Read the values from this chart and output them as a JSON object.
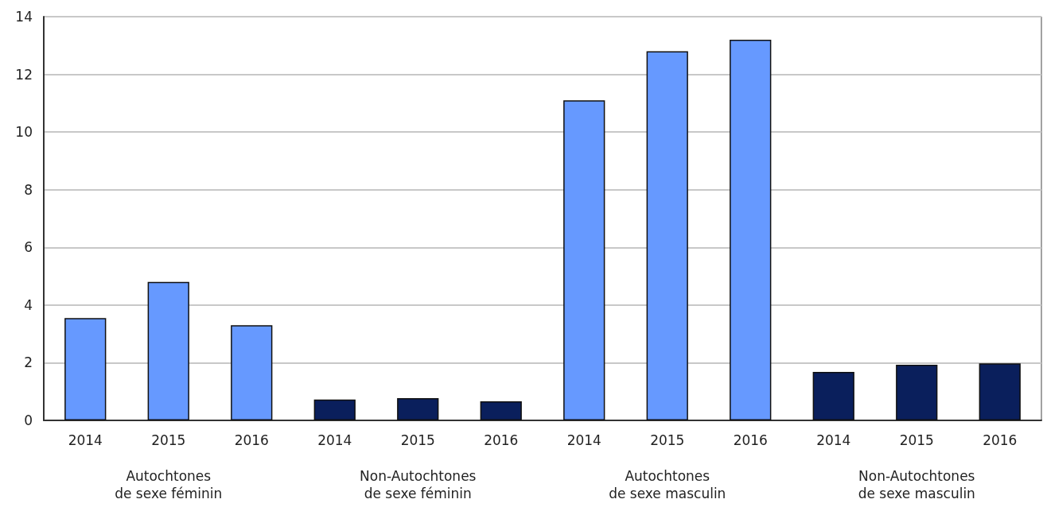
{
  "chart_data": {
    "type": "bar",
    "categories": [
      "2014",
      "2015",
      "2016",
      "2014",
      "2015",
      "2016",
      "2014",
      "2015",
      "2016",
      "2014",
      "2015",
      "2016"
    ],
    "values": [
      3.55,
      4.8,
      3.3,
      0.72,
      0.77,
      0.66,
      11.1,
      12.8,
      13.2,
      1.68,
      1.93,
      1.98
    ],
    "colors": [
      "#6699ff",
      "#6699ff",
      "#6699ff",
      "#0a1f5c",
      "#0a1f5c",
      "#0a1f5c",
      "#6699ff",
      "#6699ff",
      "#6699ff",
      "#0a1f5c",
      "#0a1f5c",
      "#0a1f5c"
    ],
    "ylim": [
      0,
      14
    ],
    "yticks": [
      0,
      2,
      4,
      6,
      8,
      10,
      12,
      14
    ],
    "grid": "y",
    "annotations": [
      "Autochtones\nde sexe féminin",
      "Non-Autochtones\nde sexe féminin",
      "Autochtones\nde sexe masculin",
      "Non-Autochtones\nde sexe masculin"
    ]
  }
}
